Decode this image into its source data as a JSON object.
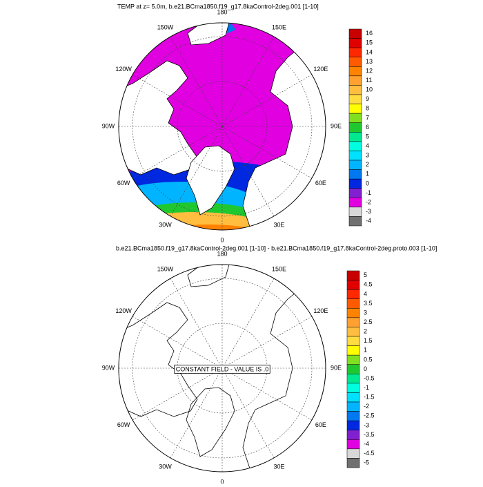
{
  "plots": [
    {
      "title": "TEMP at z=   5.0m, b.e21.BCma1850.f19_g17.8kaControl-2deg.001 [1-10]",
      "lon_labels": [
        "180",
        "150E",
        "120E",
        "90E",
        "60E",
        "30E",
        "0",
        "30W",
        "60W",
        "90W",
        "120W",
        "150W"
      ],
      "colorbar": {
        "labels": [
          16,
          15,
          14,
          13,
          12,
          11,
          10,
          9,
          8,
          7,
          6,
          5,
          4,
          3,
          2,
          1,
          0,
          -1,
          -2,
          -3,
          -4
        ],
        "colors": [
          "#c80000",
          "#e00000",
          "#ff2800",
          "#ff5a00",
          "#ff8200",
          "#ffa030",
          "#ffbe40",
          "#ffdc40",
          "#ffff00",
          "#80e020",
          "#20c830",
          "#00e890",
          "#00ffe0",
          "#00e0ff",
          "#00b4ff",
          "#0078f0",
          "#0028e0",
          "#8020d0",
          "#e000e0",
          "#d8d8d8",
          "#707070"
        ]
      }
    },
    {
      "title": "b.e21.BCma1850.f19_g17.8kaControl-2deg.001 [1-10] - b.e21.BCma1850.f19_g17.8kaControl-2deg.proto.003 [1-10]",
      "lon_labels": [
        "180",
        "150E",
        "120E",
        "90E",
        "60E",
        "30E",
        "0",
        "30W",
        "60W",
        "90W",
        "120W",
        "150W"
      ],
      "annotation": "CONSTANT FIELD - VALUE IS .0",
      "colorbar": {
        "labels": [
          5,
          4.5,
          4,
          3.5,
          3,
          2.5,
          2,
          1.5,
          1,
          0.5,
          0,
          -0.5,
          -1,
          -1.5,
          -2,
          -2.5,
          -3,
          -3.5,
          -4,
          -4.5,
          -5
        ],
        "colors": [
          "#c80000",
          "#e00000",
          "#ff2800",
          "#ff5a00",
          "#ff8200",
          "#ffa030",
          "#ffbe40",
          "#ffdc40",
          "#ffff00",
          "#80e020",
          "#20c830",
          "#00e890",
          "#00ffe0",
          "#00e0ff",
          "#00b4ff",
          "#0078f0",
          "#0028e0",
          "#8020d0",
          "#e000e0",
          "#d8d8d8",
          "#707070"
        ]
      }
    }
  ]
}
